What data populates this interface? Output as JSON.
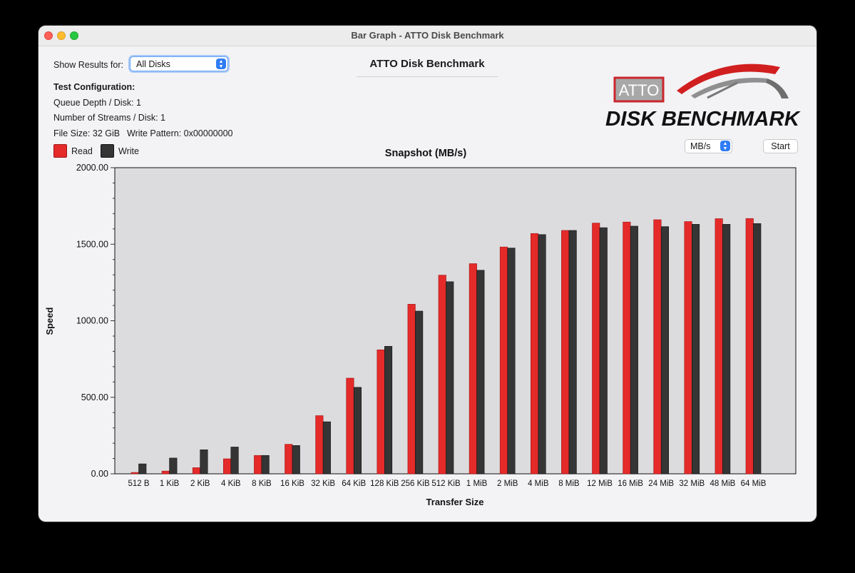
{
  "window": {
    "title": "Bar Graph - ATTO Disk Benchmark"
  },
  "controls": {
    "show_results_label": "Show Results for:",
    "disk_select_value": "All Disks",
    "unit_select_value": "MB/s",
    "start_label": "Start"
  },
  "header": {
    "title": "ATTO Disk Benchmark"
  },
  "logo": {
    "brand": "ATTO",
    "product": "DISK BENCHMARK"
  },
  "config": {
    "heading": "Test Configuration:",
    "queue_depth": "Queue Depth / Disk: 1",
    "streams": "Number of Streams / Disk: 1",
    "file_size": "File Size: 32 GiB",
    "write_pattern": "Write Pattern: 0x00000000"
  },
  "legend": {
    "read_label": "Read",
    "write_label": "Write"
  },
  "colors": {
    "read": "#e52a2a",
    "write": "#353535",
    "plot_bg": "#dcdcde",
    "accent": "#2f7cf6"
  },
  "chart_data": {
    "type": "bar",
    "title": "Snapshot (MB/s)",
    "xlabel": "Transfer Size",
    "ylabel": "Speed",
    "ylim": [
      0,
      2000
    ],
    "yticks": [
      "0.00",
      "500.00",
      "1000.00",
      "1500.00",
      "2000.00"
    ],
    "categories": [
      "512 B",
      "1 KiB",
      "2 KiB",
      "4 KiB",
      "8 KiB",
      "16 KiB",
      "32 KiB",
      "64 KiB",
      "128 KiB",
      "256 KiB",
      "512 KiB",
      "1 MiB",
      "2 MiB",
      "4 MiB",
      "8 MiB",
      "12 MiB",
      "16 MiB",
      "24 MiB",
      "32 MiB",
      "48 MiB",
      "64 MiB"
    ],
    "series": [
      {
        "name": "Read",
        "values": [
          9,
          18,
          40,
          98,
          120,
          193,
          380,
          625,
          810,
          1108,
          1298,
          1373,
          1482,
          1570,
          1590,
          1638,
          1645,
          1660,
          1648,
          1667,
          1668
        ]
      },
      {
        "name": "Write",
        "values": [
          65,
          103,
          157,
          175,
          120,
          185,
          340,
          565,
          833,
          1063,
          1255,
          1330,
          1475,
          1563,
          1590,
          1608,
          1618,
          1615,
          1630,
          1630,
          1635
        ]
      }
    ],
    "grid": false,
    "legend_position": "top-left"
  }
}
